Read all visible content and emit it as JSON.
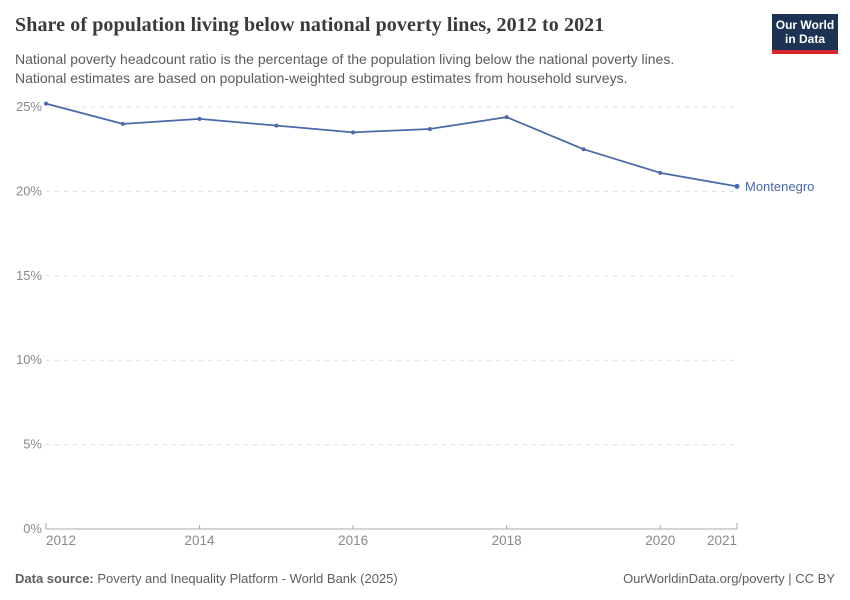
{
  "header": {
    "title": "Share of population living below national poverty lines, 2012 to 2021",
    "subtitle_line1": "National poverty headcount ratio is the percentage of the population living below the national poverty lines.",
    "subtitle_line2": "National estimates are based on population-weighted subgroup estimates from household surveys.",
    "logo": {
      "line1": "Our World",
      "line2": "in Data",
      "bg_color": "#1d3353",
      "accent_color": "#d8252e"
    }
  },
  "chart_data": {
    "type": "line",
    "title": "Share of population living below national poverty lines, 2012 to 2021",
    "entity_label": "Montenegro",
    "x": [
      2012,
      2013,
      2014,
      2015,
      2016,
      2017,
      2018,
      2019,
      2020,
      2021
    ],
    "series": [
      {
        "name": "Montenegro",
        "color": "#4a69a8",
        "values": [
          25.2,
          24.0,
          24.3,
          23.9,
          23.5,
          23.7,
          24.4,
          22.5,
          21.1,
          20.3
        ]
      }
    ],
    "xlim": [
      2012,
      2021
    ],
    "ylim": [
      0,
      25
    ],
    "x_ticks": [
      {
        "value": 2012,
        "label": "2012"
      },
      {
        "value": 2014,
        "label": "2014"
      },
      {
        "value": 2016,
        "label": "2016"
      },
      {
        "value": 2018,
        "label": "2018"
      },
      {
        "value": 2020,
        "label": "2020"
      },
      {
        "value": 2021,
        "label": "2021"
      }
    ],
    "y_ticks": [
      {
        "value": 0,
        "label": "0%"
      },
      {
        "value": 5,
        "label": "5%"
      },
      {
        "value": 10,
        "label": "10%"
      },
      {
        "value": 15,
        "label": "15%"
      },
      {
        "value": 20,
        "label": "20%"
      },
      {
        "value": 25,
        "label": "25%"
      }
    ],
    "grid": "horizontal-dashed",
    "legend_position": "end-of-line",
    "colors": {
      "gridline": "#dddddd",
      "axis_line": "#a8a8a8",
      "tick_label": "#8a8a8a"
    }
  },
  "footer": {
    "source_label": "Data source:",
    "source_text": "Poverty and Inequality Platform - World Bank (2025)",
    "credit": "OurWorldinData.org/poverty | CC BY"
  }
}
